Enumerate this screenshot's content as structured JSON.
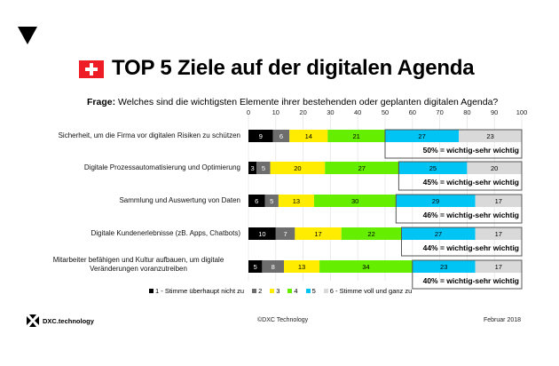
{
  "page": {
    "title": "TOP 5 Ziele auf der digitalen Agenda",
    "question_prefix": "Frage:",
    "question_text": " Welches sind die wichtigsten Elemente ihrer bestehenden oder geplanten digitalen Agenda?",
    "footer": {
      "logo_text": "DXC.technology",
      "copyright": "©DXC Technology",
      "date": "Februar 2018"
    }
  },
  "chart_data": {
    "type": "bar",
    "orientation": "horizontal-stacked-100",
    "title": "TOP 5 Ziele auf der digitalen Agenda",
    "subtitle": "Frage: Welches sind die wichtigsten Elemente ihrer bestehenden oder geplanten digitalen Agenda?",
    "xlim": [
      0,
      100
    ],
    "xticks": [
      0,
      10,
      20,
      30,
      40,
      50,
      60,
      70,
      80,
      90,
      100
    ],
    "grid": true,
    "legend_position": "bottom",
    "categories": [
      "Sicherheit, um die Firma vor digitalen Risiken zu schützen",
      "Digitale Prozessautomatisierung und Optimierung",
      "Sammlung und Auswertung von Daten",
      "Digitale Kundenerlebnisse (zB. Apps, Chatbots)",
      "Mitarbeiter befähigen und Kultur aufbauen, um digitale Veränderungen voranzutreiben"
    ],
    "series": [
      {
        "name": "1 - Stimme überhaupt nicht zu",
        "color": "#000000",
        "text_color": "#ffffff",
        "values": [
          9,
          3,
          6,
          10,
          5
        ]
      },
      {
        "name": "2",
        "color": "#6d6d6d",
        "text_color": "#ffffff",
        "values": [
          6,
          5,
          5,
          7,
          8
        ]
      },
      {
        "name": "3",
        "color": "#ffec00",
        "text_color": "#000000",
        "values": [
          14,
          20,
          13,
          17,
          13
        ]
      },
      {
        "name": "4",
        "color": "#66ee00",
        "text_color": "#000000",
        "values": [
          21,
          27,
          30,
          22,
          34
        ]
      },
      {
        "name": "5",
        "color": "#00c4f4",
        "text_color": "#000000",
        "values": [
          27,
          25,
          29,
          27,
          23
        ]
      },
      {
        "name": "6 - Stimme voll und ganz zu",
        "color": "#d9d9d9",
        "text_color": "#000000",
        "values": [
          23,
          20,
          17,
          17,
          17
        ]
      }
    ],
    "annotations": [
      "50% = wichtig-sehr wichtig",
      "45% = wichtig-sehr wichtig",
      "46% = wichtig-sehr wichtig",
      "44% = wichtig-sehr wichtig",
      "40% = wichtig-sehr wichtig"
    ],
    "highlight_start": [
      50,
      55,
      54,
      56,
      60
    ]
  }
}
